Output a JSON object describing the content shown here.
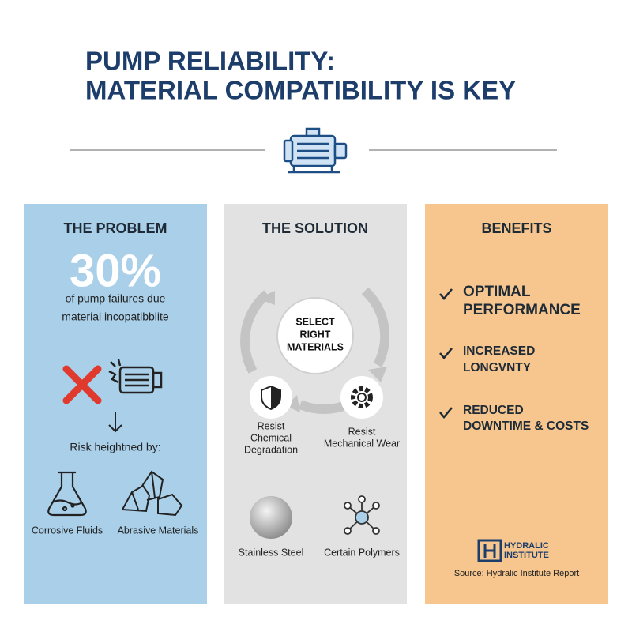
{
  "header": {
    "title": [
      "PUMP RELIABILITY:",
      "MATERIAL COMPATIBILITY IS KEY"
    ]
  },
  "problem": {
    "heading": "THE PROBLEM",
    "statistic": "30%",
    "caption": [
      "of pump failures due",
      "material incopatibblite"
    ],
    "risk_label": "Risk heightned by:",
    "risks": [
      "Corrosive Fluids",
      "Abrasive Materials"
    ]
  },
  "solution": {
    "heading": "THE SOLUTION",
    "center": [
      "SELECT",
      "RIGHT",
      "MATERIALS"
    ],
    "resists": [
      [
        "Resist",
        "Chemical",
        "Degradation"
      ],
      [
        "Resist",
        "Mechanical Wear"
      ]
    ],
    "materials": [
      "Stainless Steel",
      "Certain Polymers"
    ]
  },
  "benefits": {
    "heading": "BENEFITS",
    "items": [
      [
        "OPTIMAL",
        "PERFORMANCE"
      ],
      [
        "INCREASED",
        "LONGVNTY"
      ],
      [
        "REDUCED",
        "DOWNTIME & COSTS"
      ]
    ],
    "logo": [
      "HYDRALIC",
      "INSTITUTE"
    ],
    "source": "Source: Hydralic Institute Report"
  }
}
